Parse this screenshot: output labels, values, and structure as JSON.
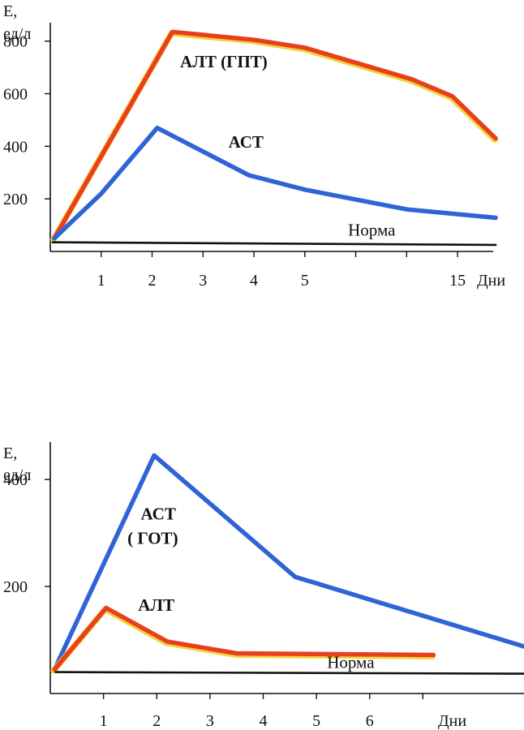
{
  "chart_data": [
    {
      "type": "line",
      "ylabel_line1": "Е,",
      "ylabel_line2": "ед/л",
      "xlabel": "Дни",
      "yticks": [
        200,
        400,
        600,
        800
      ],
      "xticks": [
        {
          "x": 1,
          "label": "1"
        },
        {
          "x": 2,
          "label": "2"
        },
        {
          "x": 3,
          "label": "3"
        },
        {
          "x": 4,
          "label": "4"
        },
        {
          "x": 5,
          "label": "5"
        },
        {
          "x": 6,
          "label": ""
        },
        {
          "x": 7,
          "label": ""
        },
        {
          "x": 8,
          "label": "15"
        }
      ],
      "xlim": [
        0,
        8.7
      ],
      "ylim": [
        0,
        870
      ],
      "series": [
        {
          "name": "АЛТ (ГПТ)",
          "color": "#e8401e",
          "highlight": "#f2d23a",
          "points": [
            [
              0.08,
              50
            ],
            [
              2.4,
              835
            ],
            [
              4.0,
              805
            ],
            [
              5.0,
              775
            ],
            [
              7.1,
              655
            ],
            [
              7.9,
              590
            ],
            [
              8.75,
              430
            ]
          ]
        },
        {
          "name": "АСТ",
          "color": "#2f63d6",
          "points": [
            [
              0.08,
              50
            ],
            [
              1.0,
              220
            ],
            [
              2.1,
              470
            ],
            [
              3.9,
              290
            ],
            [
              5.0,
              235
            ],
            [
              7.0,
              160
            ],
            [
              8.75,
              128
            ]
          ]
        },
        {
          "name": "Норма",
          "color": "#111111",
          "points": [
            [
              0.05,
              35
            ],
            [
              8.75,
              25
            ]
          ]
        }
      ],
      "annotations": [
        {
          "text": "АЛТ (ГПТ)",
          "x": 2.55,
          "y": 700
        },
        {
          "text": "АСТ",
          "x": 3.5,
          "y": 395
        },
        {
          "text": "Норма",
          "x": 5.85,
          "y": 60
        }
      ]
    },
    {
      "type": "line",
      "ylabel_line1": "Е,",
      "ylabel_line2": "ед/л",
      "xlabel": "Дни",
      "yticks": [
        200,
        400
      ],
      "xticks": [
        {
          "x": 1,
          "label": "1"
        },
        {
          "x": 2,
          "label": "2"
        },
        {
          "x": 3,
          "label": "3"
        },
        {
          "x": 4,
          "label": "4"
        },
        {
          "x": 5,
          "label": "5"
        },
        {
          "x": 6,
          "label": "6"
        },
        {
          "x": 7,
          "label": ""
        }
      ],
      "xlim": [
        0,
        8.9
      ],
      "ylim": [
        0,
        470
      ],
      "series": [
        {
          "name": "АСТ ( ГОТ)",
          "color": "#2f63d6",
          "points": [
            [
              0.08,
              45
            ],
            [
              1.95,
              445
            ],
            [
              4.6,
              218
            ],
            [
              8.9,
              88
            ]
          ]
        },
        {
          "name": "АЛТ",
          "color": "#e8401e",
          "highlight": "#f2d23a",
          "points": [
            [
              0.08,
              45
            ],
            [
              1.05,
              160
            ],
            [
              2.2,
              97
            ],
            [
              3.5,
              75
            ],
            [
              7.2,
              72
            ]
          ]
        },
        {
          "name": "Норма",
          "color": "#111111",
          "points": [
            [
              0.1,
              40
            ],
            [
              8.9,
              37
            ]
          ]
        }
      ],
      "annotations": [
        {
          "text": "АСТ",
          "x": 1.7,
          "y": 325
        },
        {
          "text": "( ГОТ)",
          "x": 1.45,
          "y": 280
        },
        {
          "text": "АЛТ",
          "x": 1.65,
          "y": 155
        },
        {
          "text": "Норма",
          "x": 5.2,
          "y": 48
        }
      ]
    }
  ]
}
